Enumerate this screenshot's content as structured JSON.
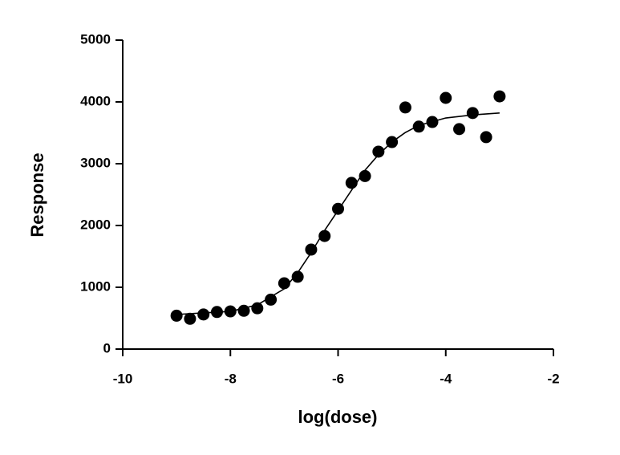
{
  "chart_data": {
    "type": "scatter",
    "x_label": "log(dose)",
    "y_label": "Response",
    "x": [
      -9,
      -8.75,
      -8.5,
      -8.25,
      -8,
      -7.75,
      -7.5,
      -7.25,
      -7,
      -6.75,
      -6.5,
      -6.25,
      -6,
      -5.75,
      -5.5,
      -5.25,
      -5,
      -4.75,
      -4.5,
      -4.25,
      -4,
      -3.75,
      -3.5,
      -3.25,
      -3
    ],
    "values": [
      540,
      490,
      560,
      600,
      610,
      620,
      660,
      800,
      1065,
      1170,
      1610,
      1830,
      2270,
      2690,
      2800,
      3195,
      3350,
      3910,
      3600,
      3675,
      4065,
      3560,
      3820,
      3430,
      4090
    ],
    "color": "#000000",
    "curve": {
      "x": [
        -9,
        -8.5,
        -8,
        -7.5,
        -7,
        -6.75,
        -6.5,
        -6.25,
        -6,
        -5.75,
        -5.5,
        -5.25,
        -5,
        -4.75,
        -4.5,
        -4,
        -3.5,
        -3
      ],
      "values": [
        560,
        585,
        610,
        715,
        975,
        1235,
        1560,
        1920,
        2245,
        2570,
        2895,
        3145,
        3350,
        3505,
        3620,
        3740,
        3790,
        3820
      ]
    },
    "xlim": [
      -10,
      -2
    ],
    "xticks": [
      -10,
      -8,
      -6,
      -4,
      -2
    ],
    "ylim": [
      0,
      5000
    ],
    "yticks": [
      0,
      1000,
      2000,
      3000,
      4000,
      5000
    ]
  }
}
